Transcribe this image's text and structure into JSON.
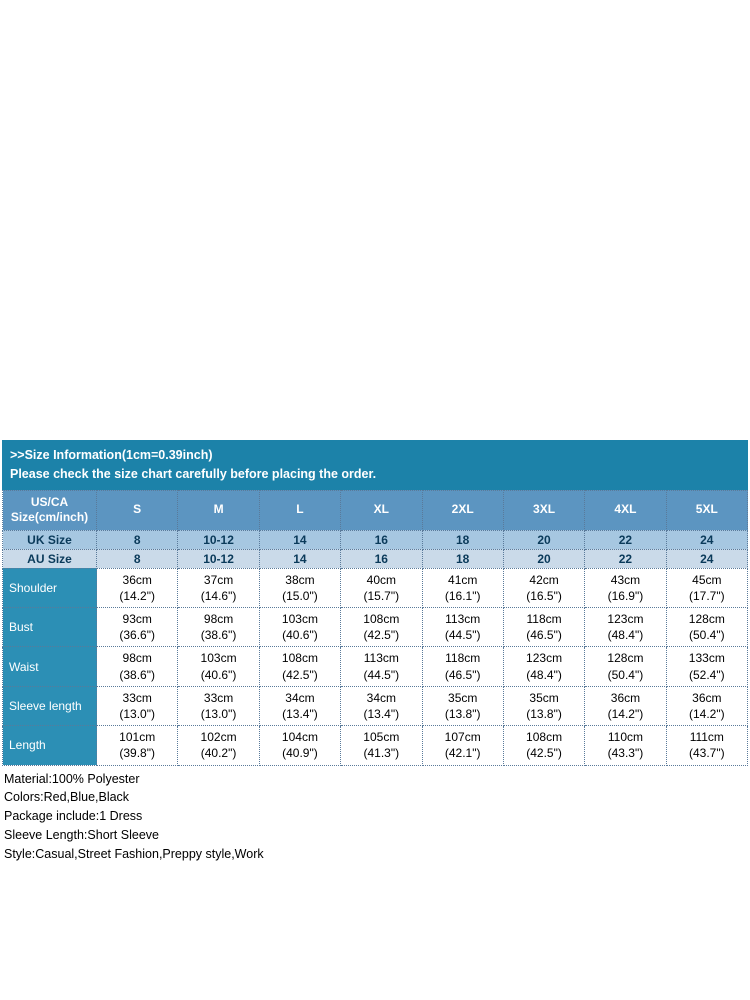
{
  "header": {
    "line1": ">>Size Information(1cm=0.39inch)",
    "line2": "Please check the size chart carefully before placing the order."
  },
  "size_table": {
    "label_usca": "US/CA Size(cm/inch)",
    "label_uk": "UK Size",
    "label_au": "AU Size",
    "sizes": [
      "S",
      "M",
      "L",
      "XL",
      "2XL",
      "3XL",
      "4XL",
      "5XL"
    ],
    "uk": [
      "8",
      "10-12",
      "14",
      "16",
      "18",
      "20",
      "22",
      "24"
    ],
    "au": [
      "8",
      "10-12",
      "14",
      "16",
      "18",
      "20",
      "22",
      "24"
    ],
    "rows": [
      {
        "label": "Shoulder",
        "cm": [
          "36cm",
          "37cm",
          "38cm",
          "40cm",
          "41cm",
          "42cm",
          "43cm",
          "45cm"
        ],
        "in": [
          "(14.2\")",
          "(14.6\")",
          "(15.0\")",
          "(15.7\")",
          "(16.1\")",
          "(16.5\")",
          "(16.9\")",
          "(17.7\")"
        ]
      },
      {
        "label": "Bust",
        "cm": [
          "93cm",
          "98cm",
          "103cm",
          "108cm",
          "113cm",
          "118cm",
          "123cm",
          "128cm"
        ],
        "in": [
          "(36.6\")",
          "(38.6\")",
          "(40.6\")",
          "(42.5\")",
          "(44.5\")",
          "(46.5\")",
          "(48.4\")",
          "(50.4\")"
        ]
      },
      {
        "label": "Waist",
        "cm": [
          "98cm",
          "103cm",
          "108cm",
          "113cm",
          "118cm",
          "123cm",
          "128cm",
          "133cm"
        ],
        "in": [
          "(38.6\")",
          "(40.6\")",
          "(42.5\")",
          "(44.5\")",
          "(46.5\")",
          "(48.4\")",
          "(50.4\")",
          "(52.4\")"
        ]
      },
      {
        "label": "Sleeve length",
        "cm": [
          "33cm",
          "33cm",
          "34cm",
          "34cm",
          "35cm",
          "35cm",
          "36cm",
          "36cm"
        ],
        "in": [
          "(13.0\")",
          "(13.0\")",
          "(13.4\")",
          "(13.4\")",
          "(13.8\")",
          "(13.8\")",
          "(14.2\")",
          "(14.2\")"
        ]
      },
      {
        "label": "Length",
        "cm": [
          "101cm",
          "102cm",
          "104cm",
          "105cm",
          "107cm",
          "108cm",
          "110cm",
          "111cm"
        ],
        "in": [
          "(39.8\")",
          "(40.2\")",
          "(40.9\")",
          "(41.3\")",
          "(42.1\")",
          "(42.5\")",
          "(43.3\")",
          "(43.7\")"
        ]
      }
    ]
  },
  "product_info": [
    "Material:100% Polyester",
    "Colors:Red,Blue,Black",
    "Package include:1 Dress",
    "Sleeve Length:Short Sleeve",
    "Style:Casual,Street Fashion,Preppy style,Work"
  ],
  "colors": {
    "header_bg": "#1c82a9",
    "usca_bg": "#5c95c1",
    "uk_bg": "#a6c7e1",
    "au_bg": "#cadae9",
    "meas_label_bg": "#2c8fb5",
    "border": "#5a7a9a"
  }
}
